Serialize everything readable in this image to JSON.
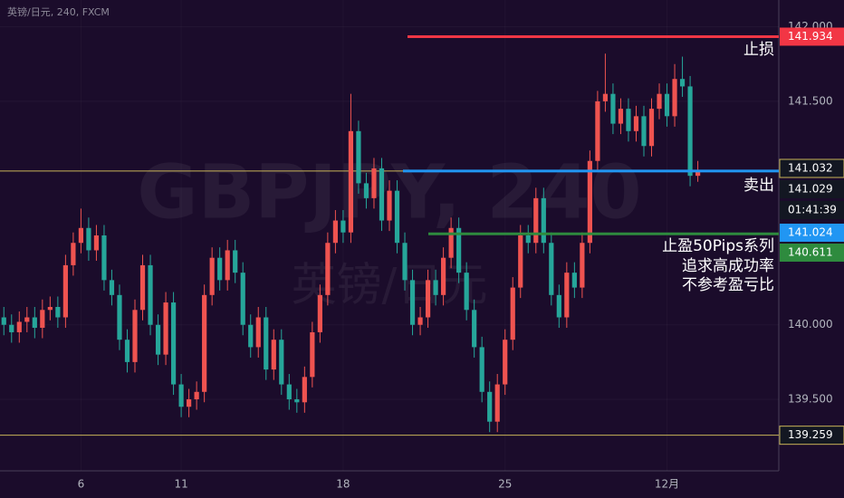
{
  "chart_data": {
    "type": "candlestick",
    "header": "英镑/日元, 240, FXCM",
    "watermark": [
      "GBPJPY, 240",
      "英镑/日元"
    ],
    "up_color": "#ef5350",
    "down_color": "#26a69a",
    "open": [
      140.05,
      140.0,
      139.95,
      140.02,
      140.05,
      139.98,
      140.1,
      140.12,
      140.05,
      140.4,
      140.55,
      140.65,
      140.5,
      140.6,
      140.3,
      140.2,
      139.9,
      139.75,
      140.1,
      140.4,
      140.0,
      139.8,
      140.15,
      139.6,
      139.45,
      139.5,
      139.55,
      140.2,
      140.45,
      140.3,
      140.5,
      140.35,
      140.0,
      139.85,
      140.05,
      139.7,
      139.9,
      139.6,
      139.5,
      139.48,
      139.65,
      139.95,
      140.2,
      140.55,
      140.7,
      140.62,
      141.3,
      140.95,
      140.85,
      141.05,
      140.7,
      140.9,
      140.55,
      140.3,
      140.0,
      140.05,
      140.3,
      140.2,
      140.45,
      140.65,
      140.35,
      140.1,
      139.85,
      139.55,
      139.35,
      139.6,
      139.9,
      140.25,
      140.6,
      140.55,
      140.85,
      140.55,
      140.2,
      140.05,
      140.35,
      140.25,
      140.55,
      141.1,
      141.5,
      141.55,
      141.35,
      141.45,
      141.3,
      141.4,
      141.2,
      141.45,
      141.55,
      141.4,
      141.65,
      141.6,
      141.0
    ],
    "high": [
      140.12,
      140.07,
      140.09,
      140.12,
      140.12,
      140.17,
      140.19,
      140.19,
      140.47,
      140.62,
      140.78,
      140.72,
      140.67,
      140.67,
      140.37,
      140.27,
      139.97,
      140.17,
      140.47,
      140.47,
      140.07,
      140.22,
      140.22,
      139.67,
      139.57,
      139.62,
      140.27,
      140.52,
      140.52,
      140.57,
      140.57,
      140.42,
      140.07,
      140.12,
      140.12,
      139.97,
      139.97,
      139.67,
      139.57,
      139.72,
      140.02,
      140.27,
      140.62,
      140.77,
      140.77,
      141.55,
      141.37,
      141.02,
      141.12,
      141.12,
      140.97,
      140.97,
      140.62,
      140.37,
      140.12,
      140.37,
      140.37,
      140.52,
      140.72,
      140.72,
      140.42,
      140.17,
      139.92,
      139.62,
      139.67,
      139.97,
      140.32,
      140.67,
      140.67,
      140.92,
      140.92,
      140.62,
      140.27,
      140.42,
      140.42,
      140.62,
      141.17,
      141.57,
      141.82,
      141.62,
      141.52,
      141.52,
      141.47,
      141.47,
      141.52,
      141.62,
      141.62,
      141.75,
      141.8,
      141.67,
      141.1
    ],
    "low": [
      139.93,
      139.88,
      139.88,
      139.95,
      139.91,
      139.91,
      140.03,
      139.98,
      139.98,
      140.33,
      140.48,
      140.43,
      140.43,
      140.23,
      140.13,
      139.83,
      139.68,
      139.68,
      140.03,
      139.93,
      139.73,
      139.73,
      139.53,
      139.38,
      139.38,
      139.43,
      139.48,
      140.13,
      140.23,
      140.23,
      140.28,
      139.93,
      139.78,
      139.78,
      139.63,
      139.63,
      139.53,
      139.43,
      139.41,
      139.41,
      139.58,
      139.88,
      140.13,
      140.48,
      140.55,
      140.55,
      140.88,
      140.78,
      140.78,
      140.63,
      140.63,
      140.48,
      140.23,
      139.93,
      139.93,
      139.98,
      140.13,
      140.13,
      140.38,
      140.28,
      140.03,
      139.78,
      139.48,
      139.28,
      139.28,
      139.53,
      139.83,
      140.18,
      140.48,
      140.48,
      140.48,
      140.13,
      139.98,
      139.98,
      140.18,
      140.18,
      140.48,
      141.03,
      141.43,
      141.28,
      141.28,
      141.23,
      141.23,
      141.13,
      141.13,
      141.38,
      141.33,
      141.33,
      141.53,
      140.93,
      140.96
    ],
    "close": [
      140.0,
      139.95,
      140.02,
      140.05,
      139.98,
      140.1,
      140.12,
      140.05,
      140.4,
      140.55,
      140.65,
      140.5,
      140.6,
      140.3,
      140.2,
      139.9,
      139.75,
      140.1,
      140.4,
      140.0,
      139.8,
      140.15,
      139.6,
      139.45,
      139.5,
      139.55,
      140.2,
      140.45,
      140.3,
      140.5,
      140.35,
      140.0,
      139.85,
      140.05,
      139.7,
      139.9,
      139.6,
      139.5,
      139.48,
      139.65,
      139.95,
      140.2,
      140.55,
      140.7,
      140.62,
      141.3,
      140.95,
      140.85,
      141.05,
      140.7,
      140.9,
      140.55,
      140.3,
      140.0,
      140.05,
      140.3,
      140.2,
      140.45,
      140.65,
      140.35,
      140.1,
      139.85,
      139.55,
      139.35,
      139.6,
      139.9,
      140.25,
      140.6,
      140.55,
      140.85,
      140.55,
      140.2,
      140.05,
      140.35,
      140.25,
      140.55,
      141.1,
      141.5,
      141.55,
      141.35,
      141.45,
      141.3,
      141.4,
      141.2,
      141.45,
      141.55,
      141.4,
      141.65,
      141.6,
      141.0,
      141.03
    ],
    "xlim": [
      -0.5,
      100.5
    ],
    "xticks": [
      {
        "value": 10,
        "label": "6"
      },
      {
        "value": 23,
        "label": "11"
      },
      {
        "value": 44,
        "label": "18"
      },
      {
        "value": 65,
        "label": "25"
      },
      {
        "value": 86,
        "label": "12月"
      }
    ],
    "ylim": [
      139.02,
      142.18
    ],
    "yticks": [
      {
        "value": 139.5,
        "label": "139.500"
      },
      {
        "value": 140,
        "label": "140.000"
      },
      {
        "value": 141.5,
        "label": "141.500"
      },
      {
        "value": 142,
        "label": "142.000"
      }
    ],
    "grid": true,
    "levels": [
      {
        "name": "止损",
        "value": 141.934,
        "color": "#f23645"
      },
      {
        "name": "卖出",
        "value": 141.032,
        "color": "#2196f3"
      },
      {
        "name": "止盈50Pips系列",
        "value": 140.611,
        "color": "#2e8b3e"
      }
    ],
    "notes": [
      "追求高成功率",
      "不参考盈亏比"
    ],
    "price_line": {
      "color": "#c9b458",
      "values": [
        141.032,
        139.259
      ]
    },
    "price_tags": [
      {
        "value": 141.029,
        "color": "#131722"
      },
      {
        "value": 141.024,
        "color": "#2196f3"
      }
    ],
    "countdown": "01:41:39"
  }
}
